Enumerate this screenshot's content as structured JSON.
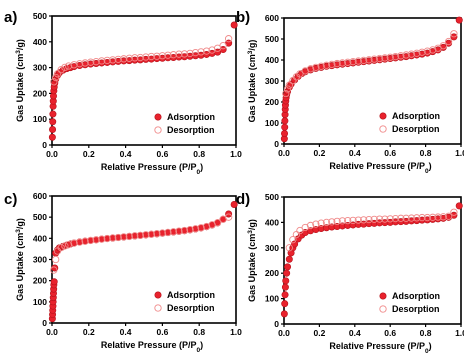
{
  "chart_data": [
    {
      "type": "scatter",
      "panel": "a)",
      "xlabel": "Relative Pressure (P/P0)",
      "ylabel": "Gas Uptake (cm3/g)",
      "xlim": [
        0,
        1.0
      ],
      "ylim": [
        0,
        500
      ],
      "xticks": [
        "0.0",
        "0.2",
        "0.4",
        "0.6",
        "0.8",
        "1.0"
      ],
      "yticks": [
        "0",
        "100",
        "200",
        "300",
        "400",
        "500"
      ],
      "legend_position": "bottom-right",
      "series": [
        {
          "name": "Adsorption",
          "marker": "filled-circle",
          "color": "#e8222d",
          "x": [
            0.002,
            0.003,
            0.004,
            0.005,
            0.006,
            0.007,
            0.008,
            0.01,
            0.012,
            0.015,
            0.02,
            0.03,
            0.04,
            0.06,
            0.08,
            0.1,
            0.12,
            0.15,
            0.18,
            0.21,
            0.24,
            0.27,
            0.3,
            0.33,
            0.36,
            0.39,
            0.42,
            0.45,
            0.48,
            0.51,
            0.54,
            0.57,
            0.6,
            0.63,
            0.66,
            0.69,
            0.72,
            0.75,
            0.78,
            0.81,
            0.84,
            0.87,
            0.9,
            0.93,
            0.96,
            0.99
          ],
          "y": [
            30,
            60,
            90,
            120,
            150,
            170,
            190,
            210,
            225,
            240,
            255,
            270,
            280,
            290,
            296,
            300,
            304,
            308,
            311,
            314,
            316,
            318,
            320,
            322,
            324,
            326,
            327,
            329,
            330,
            332,
            333,
            335,
            336,
            338,
            339,
            341,
            342,
            344,
            346,
            348,
            351,
            355,
            360,
            370,
            395,
            465
          ]
        },
        {
          "name": "Desorption",
          "marker": "open-circle",
          "color": "#f08a8a",
          "x": [
            0.01,
            0.02,
            0.03,
            0.05,
            0.07,
            0.09,
            0.12,
            0.15,
            0.18,
            0.21,
            0.24,
            0.27,
            0.3,
            0.33,
            0.36,
            0.39,
            0.42,
            0.45,
            0.48,
            0.51,
            0.54,
            0.57,
            0.6,
            0.63,
            0.66,
            0.69,
            0.72,
            0.75,
            0.78,
            0.81,
            0.84,
            0.87,
            0.9,
            0.93,
            0.96
          ],
          "y": [
            245,
            262,
            276,
            292,
            301,
            306,
            311,
            315,
            318,
            321,
            323,
            326,
            328,
            330,
            332,
            334,
            336,
            338,
            339,
            341,
            343,
            344,
            346,
            348,
            350,
            352,
            353,
            355,
            358,
            361,
            364,
            368,
            375,
            385,
            412
          ]
        }
      ]
    },
    {
      "type": "scatter",
      "panel": "b)",
      "xlabel": "Relative Pressure (P/P0)",
      "ylabel": "Gas Uptake (cm3/g)",
      "xlim": [
        0,
        1.0
      ],
      "ylim": [
        0,
        600
      ],
      "xticks": [
        "0.0",
        "0.2",
        "0.4",
        "0.6",
        "0.8",
        "1.0"
      ],
      "yticks": [
        "0",
        "100",
        "200",
        "300",
        "400",
        "500",
        "600"
      ],
      "legend_position": "bottom-right",
      "series": [
        {
          "name": "Adsorption",
          "marker": "filled-circle",
          "color": "#e8222d",
          "x": [
            0.002,
            0.003,
            0.004,
            0.005,
            0.006,
            0.007,
            0.008,
            0.01,
            0.012,
            0.015,
            0.02,
            0.03,
            0.04,
            0.06,
            0.08,
            0.1,
            0.12,
            0.15,
            0.18,
            0.21,
            0.24,
            0.27,
            0.3,
            0.33,
            0.36,
            0.39,
            0.42,
            0.45,
            0.48,
            0.51,
            0.54,
            0.57,
            0.6,
            0.63,
            0.66,
            0.69,
            0.72,
            0.75,
            0.78,
            0.81,
            0.84,
            0.87,
            0.9,
            0.93,
            0.96,
            0.99
          ],
          "y": [
            25,
            50,
            80,
            110,
            140,
            165,
            185,
            205,
            220,
            235,
            250,
            270,
            285,
            305,
            322,
            335,
            344,
            353,
            360,
            365,
            370,
            373,
            377,
            380,
            383,
            386,
            389,
            392,
            395,
            398,
            401,
            404,
            407,
            410,
            413,
            416,
            420,
            424,
            428,
            433,
            440,
            448,
            460,
            480,
            510,
            590
          ]
        },
        {
          "name": "Desorption",
          "marker": "open-circle",
          "color": "#f08a8a",
          "x": [
            0.01,
            0.02,
            0.03,
            0.05,
            0.07,
            0.09,
            0.12,
            0.15,
            0.18,
            0.21,
            0.24,
            0.27,
            0.3,
            0.33,
            0.36,
            0.39,
            0.42,
            0.45,
            0.48,
            0.51,
            0.54,
            0.57,
            0.6,
            0.63,
            0.66,
            0.69,
            0.72,
            0.75,
            0.78,
            0.81,
            0.84,
            0.87,
            0.9,
            0.93,
            0.96
          ],
          "y": [
            240,
            262,
            280,
            302,
            320,
            334,
            348,
            358,
            365,
            370,
            375,
            379,
            383,
            386,
            389,
            392,
            395,
            398,
            401,
            404,
            407,
            410,
            413,
            416,
            420,
            424,
            428,
            432,
            437,
            442,
            448,
            456,
            468,
            488,
            525
          ]
        }
      ]
    },
    {
      "type": "scatter",
      "panel": "c)",
      "xlabel": "Relative Pressure (P/P0)",
      "ylabel": "Gas Uptake (cm3/g)",
      "xlim": [
        0,
        1.0
      ],
      "ylim": [
        0,
        600
      ],
      "xticks": [
        "0.0",
        "0.2",
        "0.4",
        "0.6",
        "0.8",
        "1.0"
      ],
      "yticks": [
        "0",
        "100",
        "200",
        "300",
        "400",
        "500",
        "600"
      ],
      "legend_position": "bottom-right",
      "series": [
        {
          "name": "Adsorption",
          "marker": "filled-circle",
          "color": "#e8222d",
          "x": [
            0.002,
            0.003,
            0.004,
            0.005,
            0.006,
            0.007,
            0.008,
            0.009,
            0.01,
            0.012,
            0.015,
            0.02,
            0.03,
            0.04,
            0.06,
            0.08,
            0.1,
            0.12,
            0.15,
            0.18,
            0.21,
            0.24,
            0.27,
            0.3,
            0.33,
            0.36,
            0.39,
            0.42,
            0.45,
            0.48,
            0.51,
            0.54,
            0.57,
            0.6,
            0.63,
            0.66,
            0.69,
            0.72,
            0.75,
            0.78,
            0.81,
            0.84,
            0.87,
            0.9,
            0.93,
            0.96,
            0.99
          ],
          "y": [
            20,
            40,
            60,
            80,
            100,
            120,
            140,
            160,
            180,
            195,
            260,
            330,
            345,
            355,
            362,
            368,
            373,
            378,
            383,
            387,
            390,
            393,
            396,
            399,
            401,
            404,
            406,
            409,
            411,
            414,
            416,
            419,
            421,
            424,
            427,
            430,
            433,
            436,
            440,
            444,
            449,
            455,
            463,
            473,
            490,
            515,
            560
          ]
        },
        {
          "name": "Desorption",
          "marker": "open-circle",
          "color": "#f08a8a",
          "x": [
            0.01,
            0.02,
            0.03,
            0.05,
            0.07,
            0.09,
            0.12,
            0.15,
            0.18,
            0.21,
            0.24,
            0.27,
            0.3,
            0.33,
            0.36,
            0.39,
            0.42,
            0.45,
            0.48,
            0.51,
            0.54,
            0.57,
            0.6,
            0.63,
            0.66,
            0.69,
            0.72,
            0.75,
            0.78,
            0.81,
            0.84,
            0.87,
            0.9,
            0.93,
            0.96
          ],
          "y": [
            250,
            300,
            340,
            356,
            364,
            370,
            377,
            382,
            386,
            390,
            393,
            396,
            399,
            402,
            404,
            407,
            409,
            412,
            414,
            417,
            419,
            422,
            425,
            428,
            431,
            434,
            437,
            441,
            445,
            450,
            456,
            464,
            474,
            490,
            500
          ]
        }
      ]
    },
    {
      "type": "scatter",
      "panel": "d)",
      "xlabel": "Relative Pressure (P/P0)",
      "ylabel": "Gas Uptake (cm3/g)",
      "xlim": [
        0,
        1.0
      ],
      "ylim": [
        0,
        500
      ],
      "xticks": [
        "0.0",
        "0.2",
        "0.4",
        "0.6",
        "0.8",
        "1.0"
      ],
      "yticks": [
        "0",
        "100",
        "200",
        "300",
        "400",
        "500"
      ],
      "legend_position": "bottom-right",
      "series": [
        {
          "name": "Adsorption",
          "marker": "filled-circle",
          "color": "#e8222d",
          "x": [
            0.002,
            0.004,
            0.006,
            0.008,
            0.01,
            0.015,
            0.02,
            0.03,
            0.04,
            0.05,
            0.06,
            0.08,
            0.1,
            0.12,
            0.15,
            0.18,
            0.21,
            0.24,
            0.27,
            0.3,
            0.33,
            0.36,
            0.39,
            0.42,
            0.45,
            0.48,
            0.51,
            0.54,
            0.57,
            0.6,
            0.63,
            0.66,
            0.69,
            0.72,
            0.75,
            0.78,
            0.81,
            0.84,
            0.87,
            0.9,
            0.93,
            0.96,
            0.99
          ],
          "y": [
            40,
            80,
            115,
            145,
            170,
            200,
            225,
            255,
            280,
            300,
            315,
            335,
            350,
            360,
            367,
            372,
            376,
            379,
            382,
            384,
            386,
            388,
            390,
            392,
            393,
            395,
            396,
            398,
            399,
            400,
            402,
            403,
            404,
            406,
            407,
            409,
            410,
            412,
            414,
            416,
            420,
            428,
            465
          ]
        },
        {
          "name": "Desorption",
          "marker": "open-circle",
          "color": "#f08a8a",
          "x": [
            0.03,
            0.05,
            0.07,
            0.09,
            0.12,
            0.15,
            0.18,
            0.21,
            0.24,
            0.27,
            0.3,
            0.33,
            0.36,
            0.39,
            0.42,
            0.45,
            0.48,
            0.51,
            0.54,
            0.57,
            0.6,
            0.63,
            0.66,
            0.69,
            0.72,
            0.75,
            0.78,
            0.81,
            0.84,
            0.87,
            0.9,
            0.93,
            0.96
          ],
          "y": [
            300,
            332,
            352,
            368,
            380,
            388,
            393,
            397,
            400,
            402,
            404,
            406,
            407,
            408,
            409,
            410,
            411,
            412,
            413,
            413,
            414,
            415,
            416,
            416,
            417,
            418,
            419,
            419,
            420,
            421,
            422,
            424,
            440
          ]
        }
      ]
    }
  ]
}
